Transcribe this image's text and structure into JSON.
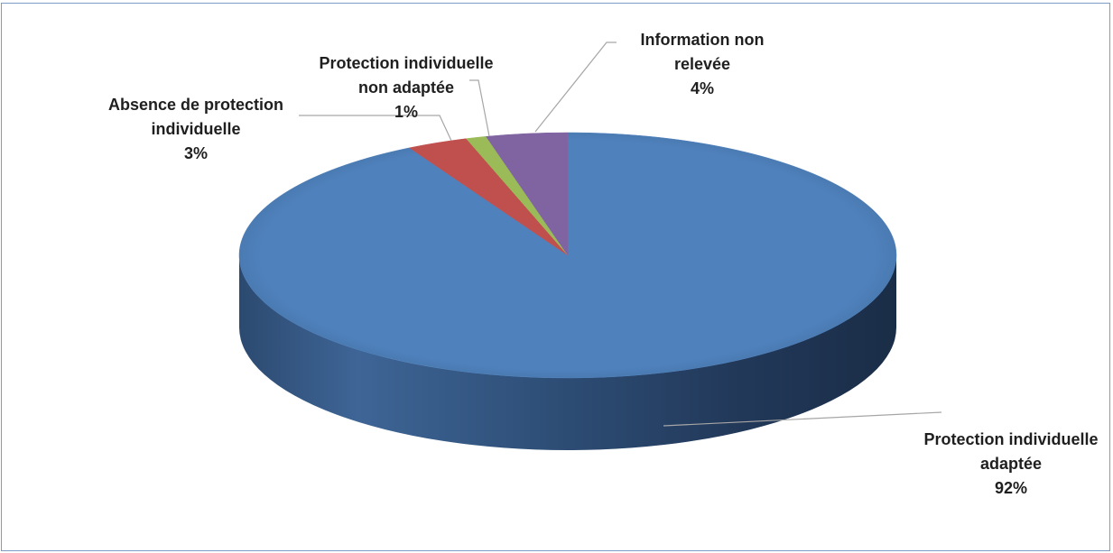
{
  "chart_data": {
    "type": "pie",
    "style": "3d",
    "title": "",
    "slices": [
      {
        "key": "adaptee",
        "label_lines": [
          "Protection individuelle",
          "adaptée"
        ],
        "pct_label": "92%",
        "value": 92,
        "color": "#4f81bd"
      },
      {
        "key": "absence",
        "label_lines": [
          "Absence de protection",
          "individuelle"
        ],
        "pct_label": "3%",
        "value": 3,
        "color": "#c0504d"
      },
      {
        "key": "non-adaptee",
        "label_lines": [
          "Protection individuelle",
          "non adaptée"
        ],
        "pct_label": "1%",
        "value": 1,
        "color": "#9bbb59"
      },
      {
        "key": "non-relevee",
        "label_lines": [
          "Information non",
          "relevée"
        ],
        "pct_label": "4%",
        "value": 4,
        "color": "#8064a2"
      }
    ],
    "slice_order_clockwise_from_top": [
      "adaptee",
      "absence",
      "non-adaptee",
      "non-relevee"
    ]
  }
}
